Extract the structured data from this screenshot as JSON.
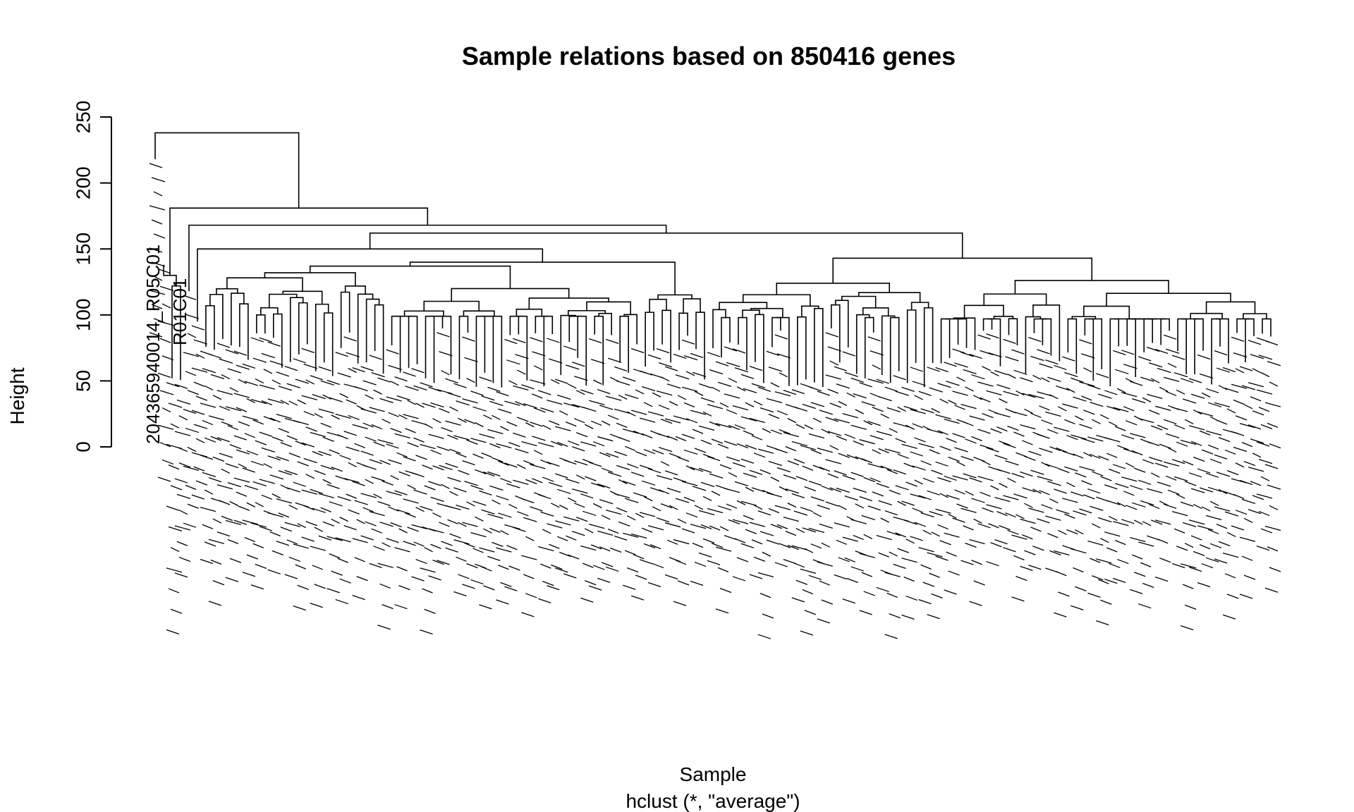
{
  "chart_data": {
    "type": "dendrogram",
    "title": "Sample relations based on 850416 genes",
    "xlabel": "Sample",
    "sub": "hclust (*, \"average\")",
    "ylabel": "Height",
    "ylim": [
      0,
      250
    ],
    "yticks": [
      "0",
      "50",
      "100",
      "150",
      "200",
      "250"
    ],
    "visible_leaf_labels": [
      "204365940014_R05C01",
      "R01C01"
    ],
    "merge_heights_top": [
      238,
      181,
      168,
      162,
      150,
      143,
      140,
      137,
      133,
      130,
      128,
      125
    ],
    "colors": {
      "line": "#000000",
      "background": "#ffffff"
    }
  }
}
